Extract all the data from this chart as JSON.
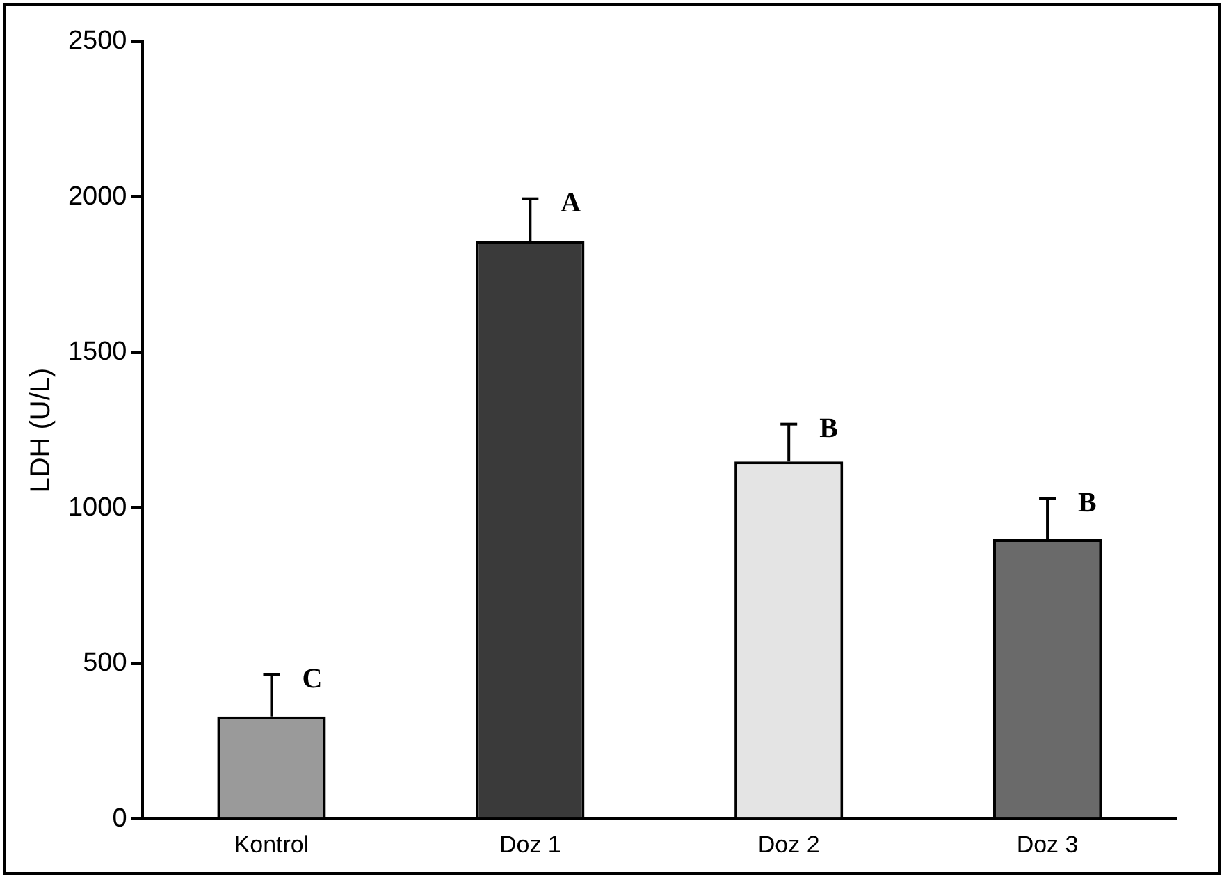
{
  "chart_data": {
    "type": "bar",
    "ylabel": "LDH (U/L)",
    "categories": [
      "Kontrol",
      "Doz 1",
      "Doz 2",
      "Doz 3"
    ],
    "values": [
      330,
      1860,
      1150,
      900
    ],
    "colors": [
      "#9a9a9a",
      "#3a3a3a",
      "#e4e4e4",
      "#6a6a6a"
    ],
    "errors": [
      [
        330,
        465
      ],
      [
        1860,
        1995
      ],
      [
        1150,
        1270
      ],
      [
        900,
        1030
      ]
    ],
    "ylim": [
      0,
      2500
    ],
    "yticks": [
      0,
      500,
      1000,
      1500,
      2000,
      2500
    ],
    "grid": false,
    "legend": false,
    "annotations": [
      {
        "text": "C",
        "x": "Kontrol",
        "y": 465
      },
      {
        "text": "A",
        "x": "Doz 1",
        "y": 1995
      },
      {
        "text": "B",
        "x": "Doz 2",
        "y": 1270
      },
      {
        "text": "B",
        "x": "Doz 3",
        "y": 1030
      }
    ]
  }
}
